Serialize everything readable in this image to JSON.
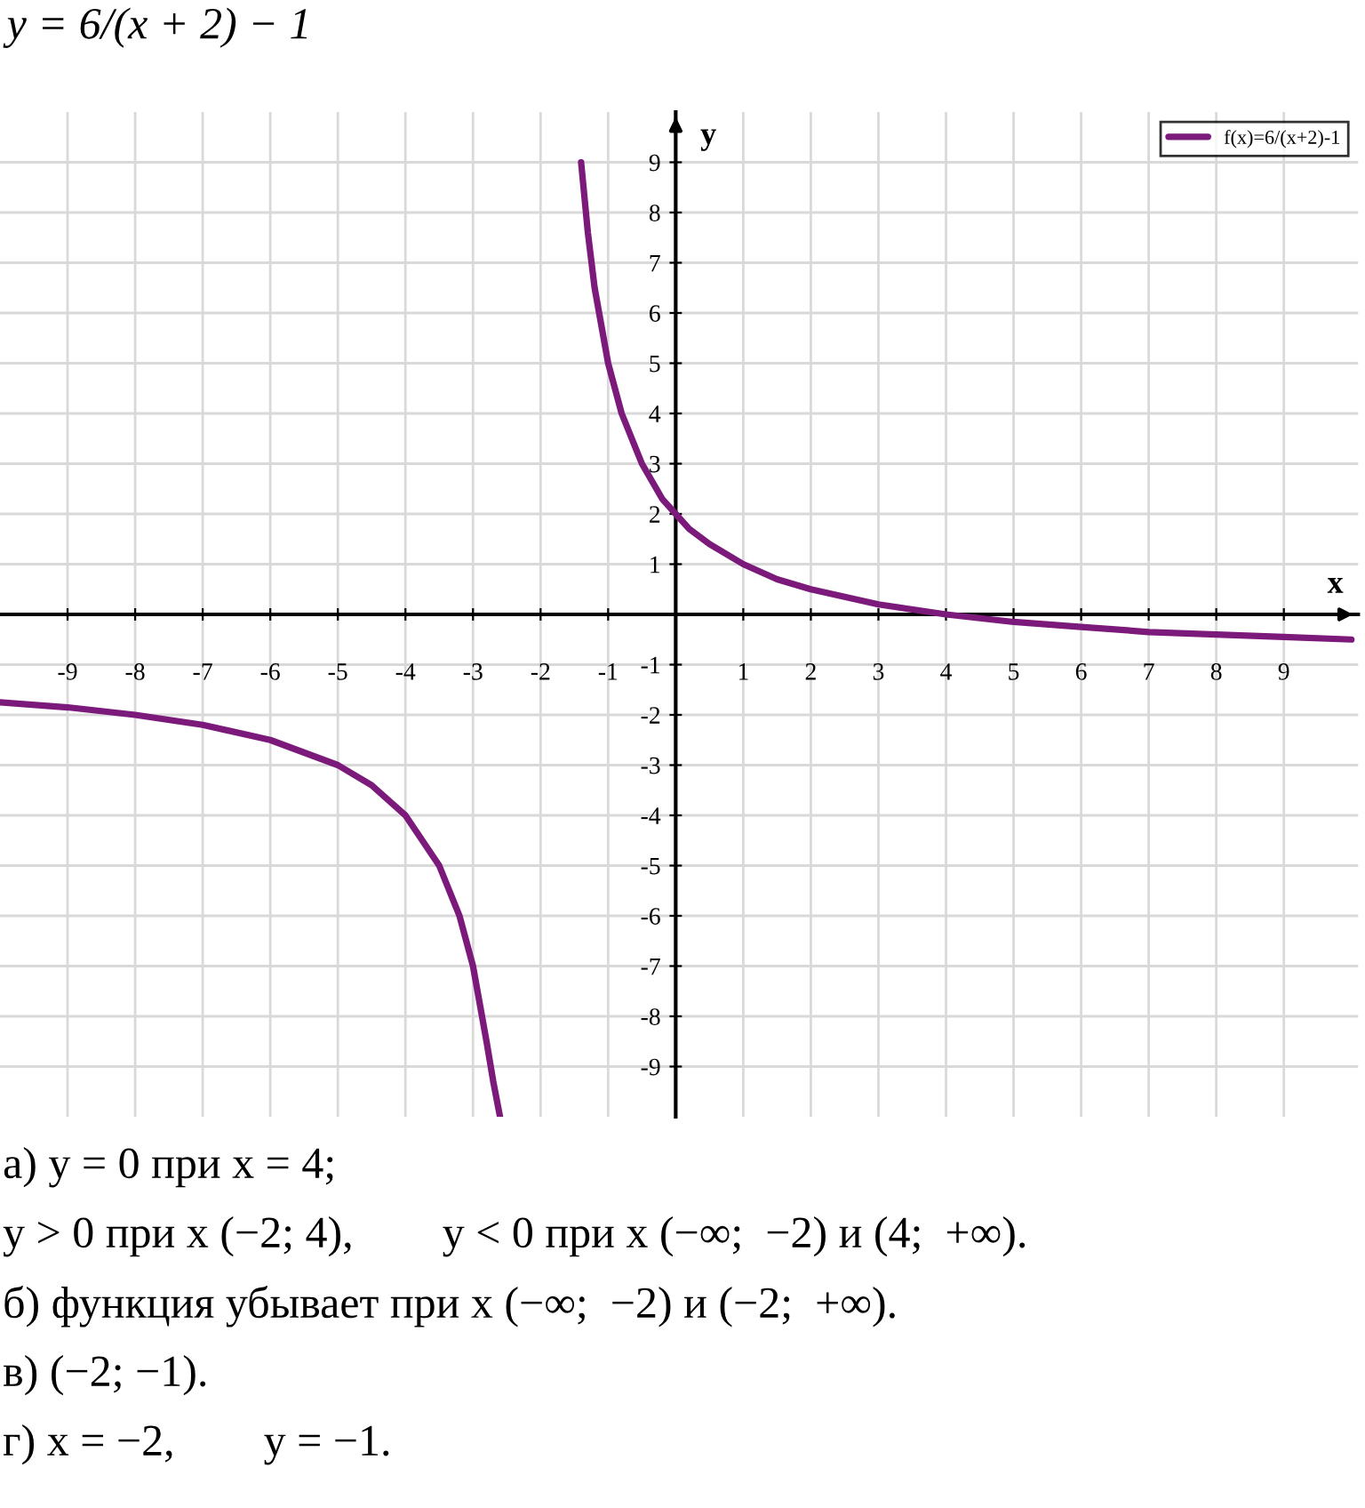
{
  "chart_data": {
    "type": "line",
    "title": "y = 6/(x + 2) − 1",
    "xlabel": "x",
    "ylabel": "y",
    "x": [
      -10,
      -9,
      -8,
      -7,
      -6,
      -5,
      -4.5,
      -4,
      -3.5,
      -3.2,
      -3,
      -2.8,
      -2.7,
      -2.6,
      -2,
      -1.4,
      -1.3,
      -1.2,
      -1,
      -0.9,
      -0.8,
      -0.5,
      -0.2,
      0,
      0.2,
      0.5,
      1,
      1.5,
      2,
      3,
      4,
      5,
      6,
      7,
      8,
      9,
      10
    ],
    "series": [
      {
        "name": "f(x)=6/(x+2)-1",
        "color": "#7b1a7b",
        "values": [
          -1.75,
          -1.85,
          -2.0,
          -2.2,
          -2.5,
          -3.0,
          -3.4,
          -4.0,
          -5.0,
          -6.0,
          -7.0,
          -8.5,
          -9.3,
          -10.0,
          null,
          9.0,
          7.6,
          6.5,
          5.0,
          4.5,
          4.0,
          3.0,
          2.3,
          2.0,
          1.7,
          1.4,
          1.0,
          0.7,
          0.5,
          0.2,
          0.0,
          -0.15,
          -0.25,
          -0.35,
          -0.4,
          -0.45,
          -0.5
        ]
      }
    ],
    "xlim": [
      -10,
      10.1
    ],
    "ylim": [
      -10,
      10
    ],
    "xticks": [
      -9,
      -8,
      -7,
      -6,
      -5,
      -4,
      -3,
      -2,
      -1,
      1,
      2,
      3,
      4,
      5,
      6,
      7,
      8,
      9
    ],
    "yticks": [
      -9,
      -8,
      -7,
      -6,
      -5,
      -4,
      -3,
      -2,
      -1,
      1,
      2,
      3,
      4,
      5,
      6,
      7,
      8,
      9
    ],
    "grid": true,
    "legend": "top right",
    "marker": "none",
    "line_style": "solid",
    "annotations": [
      "а) y = 0 при x = 4;",
      "y > 0 при x (−2; 4),        y < 0 при x (−∞;  −2) и (4;  +∞).",
      "б) функция убывает при x (−∞;  −2) и (−2;  +∞).",
      "в) (−2; −1).",
      "г) x = −2,        y = −1."
    ]
  }
}
